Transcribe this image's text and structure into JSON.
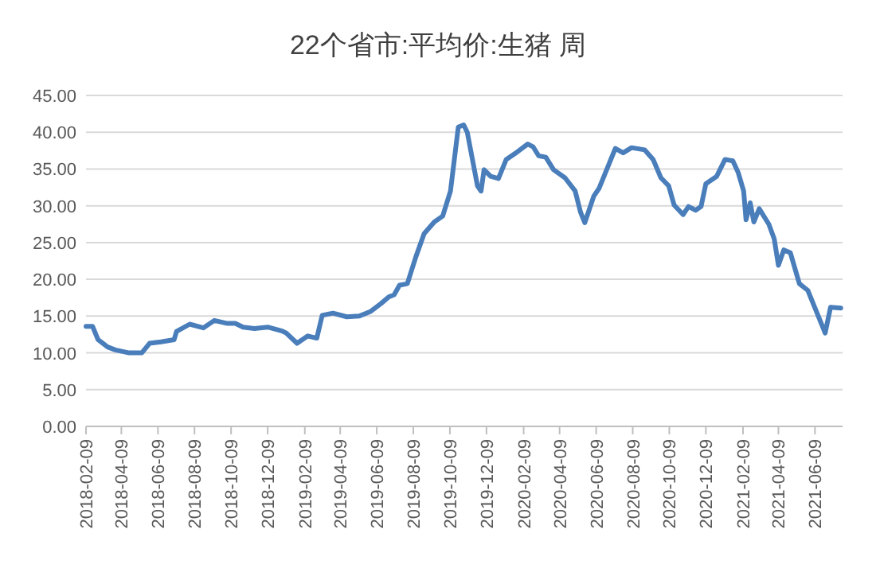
{
  "chart_data": {
    "type": "line",
    "title": "22个省市:平均价:生猪 周",
    "x": [
      "2018-02-09",
      "2018-02-20",
      "2018-03-01",
      "2018-03-17",
      "2018-03-30",
      "2018-04-22",
      "2018-05-13",
      "2018-05-26",
      "2018-06-14",
      "2018-07-06",
      "2018-07-10",
      "2018-08-01",
      "2018-08-24",
      "2018-09-11",
      "2018-10-03",
      "2018-10-16",
      "2018-10-29",
      "2018-11-17",
      "2018-12-09",
      "2019-01-01",
      "2019-01-09",
      "2019-01-27",
      "2019-02-14",
      "2019-03-01",
      "2019-03-10",
      "2019-03-28",
      "2019-04-20",
      "2019-05-11",
      "2019-05-29",
      "2019-06-16",
      "2019-06-29",
      "2019-07-08",
      "2019-07-17",
      "2019-07-30",
      "2019-08-13",
      "2019-08-27",
      "2019-09-13",
      "2019-09-27",
      "2019-10-10",
      "2019-10-23",
      "2019-11-01",
      "2019-11-07",
      "2019-11-24",
      "2019-11-30",
      "2019-12-05",
      "2019-12-16",
      "2019-12-29",
      "2020-01-11",
      "2020-01-29",
      "2020-02-16",
      "2020-02-25",
      "2020-03-05",
      "2020-03-17",
      "2020-03-30",
      "2020-04-18",
      "2020-05-05",
      "2020-05-14",
      "2020-05-21",
      "2020-06-05",
      "2020-06-14",
      "2020-06-23",
      "2020-07-11",
      "2020-07-24",
      "2020-08-07",
      "2020-08-29",
      "2020-09-12",
      "2020-09-25",
      "2020-10-08",
      "2020-10-17",
      "2020-11-01",
      "2020-11-10",
      "2020-11-22",
      "2020-12-01",
      "2020-12-09",
      "2020-12-27",
      "2021-01-10",
      "2021-01-23",
      "2021-02-01",
      "2021-02-10",
      "2021-02-14",
      "2021-02-21",
      "2021-02-27",
      "2021-03-08",
      "2021-03-24",
      "2021-04-02",
      "2021-04-09",
      "2021-04-18",
      "2021-04-29",
      "2021-05-14",
      "2021-05-28",
      "2021-06-26",
      "2021-07-05",
      "2021-07-22"
    ],
    "series": [
      {
        "color": "#4a7ebb",
        "values": [
          13.6,
          13.6,
          11.8,
          10.8,
          10.4,
          10.0,
          10.0,
          11.3,
          11.5,
          11.8,
          12.9,
          13.9,
          13.4,
          14.4,
          14.0,
          14.0,
          13.5,
          13.3,
          13.5,
          13.0,
          12.7,
          11.3,
          12.3,
          12.0,
          15.1,
          15.4,
          14.9,
          15.0,
          15.6,
          16.7,
          17.6,
          17.9,
          19.2,
          19.4,
          23.0,
          26.2,
          27.8,
          28.6,
          32.0,
          40.7,
          41.0,
          40.0,
          32.7,
          32.0,
          34.9,
          34.0,
          33.7,
          36.3,
          37.3,
          38.4,
          38.0,
          36.8,
          36.6,
          34.9,
          33.8,
          32.0,
          29.1,
          27.7,
          31.3,
          32.4,
          34.2,
          37.8,
          37.2,
          37.9,
          37.6,
          36.3,
          33.8,
          32.7,
          30.1,
          28.8,
          29.9,
          29.4,
          29.9,
          33.0,
          34.0,
          36.3,
          36.1,
          34.5,
          32.0,
          28.1,
          30.4,
          27.8,
          29.6,
          27.5,
          25.5,
          21.9,
          24.0,
          23.6,
          19.4,
          18.5,
          12.7,
          16.2,
          16.1
        ]
      }
    ],
    "xlim": [
      "2018-02-09",
      "2021-07-25"
    ],
    "xticks": [
      "2018-02-09",
      "2018-04-09",
      "2018-06-09",
      "2018-08-09",
      "2018-10-09",
      "2018-12-09",
      "2019-02-09",
      "2019-04-09",
      "2019-06-09",
      "2019-08-09",
      "2019-10-09",
      "2019-12-09",
      "2020-02-09",
      "2020-04-09",
      "2020-06-09",
      "2020-08-09",
      "2020-10-09",
      "2020-12-09",
      "2021-02-09",
      "2021-04-09",
      "2021-06-09"
    ],
    "ylim": [
      0,
      45
    ],
    "yticks": [
      {
        "value": 0,
        "label": "0.00"
      },
      {
        "value": 5,
        "label": "5.00"
      },
      {
        "value": 10,
        "label": "10.00"
      },
      {
        "value": 15,
        "label": "15.00"
      },
      {
        "value": 20,
        "label": "20.00"
      },
      {
        "value": 25,
        "label": "25.00"
      },
      {
        "value": 30,
        "label": "30.00"
      },
      {
        "value": 35,
        "label": "35.00"
      },
      {
        "value": 40,
        "label": "40.00"
      },
      {
        "value": 45,
        "label": "45.00"
      }
    ],
    "grid": "y",
    "marker": "none",
    "line_style": "solid"
  }
}
